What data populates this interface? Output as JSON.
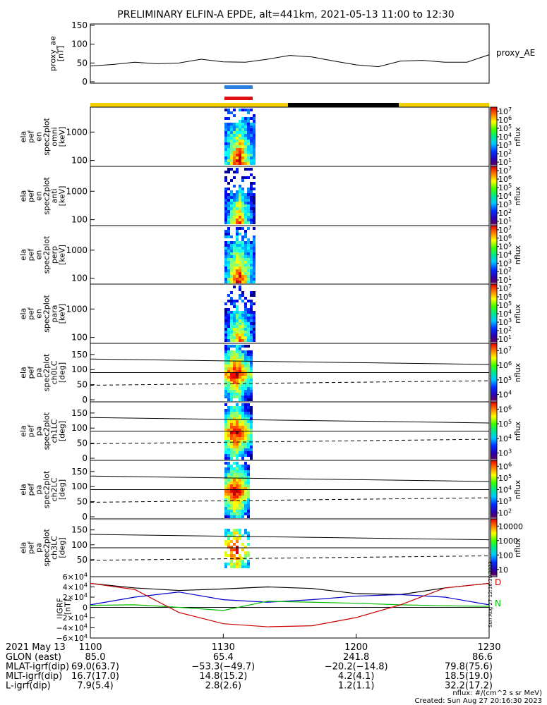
{
  "title": "PRELIMINARY ELFIN-A EPDE, alt=441km, 2021-05-13 11:00 to 12:30",
  "chart_data": {
    "type": "heatmap",
    "time_range": [
      "11:00",
      "12:30"
    ],
    "ae_panel": {
      "ylabel_lines": [
        "proxy_ae",
        "[nT]"
      ],
      "legend": "proxy_AE",
      "yticks": [
        "150",
        "100",
        "50",
        "0"
      ],
      "ylim": [
        0,
        150
      ],
      "series_x_minutes": [
        0,
        5,
        10,
        15,
        20,
        25,
        30,
        35,
        40,
        45,
        50,
        55,
        60,
        65,
        70,
        75,
        80,
        85,
        90
      ],
      "series_y": [
        42,
        46,
        52,
        48,
        50,
        60,
        53,
        52,
        60,
        70,
        66,
        55,
        45,
        40,
        55,
        57,
        52,
        52,
        72
      ]
    },
    "spectrogram_panels": [
      {
        "label_lines": [
          "ela",
          "pef",
          "en",
          "spec2plot",
          "omni",
          "[keV]"
        ],
        "yticks": [
          "1000",
          "100"
        ],
        "colorbar_ticks": [
          "10^7",
          "10^6",
          "10^5",
          "10^4",
          "10^3",
          "10^2",
          "10^1"
        ],
        "colorbar_label": "nflux"
      },
      {
        "label_lines": [
          "ela",
          "pef",
          "en",
          "spec2plot",
          "anti",
          "[keV]"
        ],
        "yticks": [
          "1000",
          "100"
        ],
        "colorbar_ticks": [
          "10^7",
          "10^6",
          "10^5",
          "10^4",
          "10^3",
          "10^2",
          "10^1"
        ],
        "colorbar_label": "nflux"
      },
      {
        "label_lines": [
          "ela",
          "pef",
          "en",
          "spec2plot",
          "perp",
          "[keV]"
        ],
        "yticks": [
          "1000",
          "100"
        ],
        "colorbar_ticks": [
          "10^7",
          "10^6",
          "10^5",
          "10^4",
          "10^3",
          "10^2",
          "10^1"
        ],
        "colorbar_label": "nflux"
      },
      {
        "label_lines": [
          "ela",
          "pef",
          "en",
          "spec2plot",
          "para",
          "[keV]"
        ],
        "yticks": [
          "1000",
          "100"
        ],
        "colorbar_ticks": [
          "10^7",
          "10^6",
          "10^5",
          "10^4",
          "10^3",
          "10^2",
          "10^1"
        ],
        "colorbar_label": "nflux"
      }
    ],
    "pitch_panels": [
      {
        "label_lines": [
          "ela",
          "pef",
          "pa",
          "spec2plot",
          "ch0LC",
          "[deg]"
        ],
        "yticks": [
          "150",
          "100",
          "50",
          "0"
        ],
        "colorbar_ticks": [
          "10^7",
          "10^6",
          "10^5",
          "10^4"
        ],
        "colorbar_label": "nflux"
      },
      {
        "label_lines": [
          "ela",
          "pef",
          "pa",
          "spec2plot",
          "ch1LC",
          "[deg]"
        ],
        "yticks": [
          "150",
          "100",
          "50",
          "0"
        ],
        "colorbar_ticks": [
          "10^6",
          "10^5",
          "10^4",
          "10^3"
        ],
        "colorbar_label": "nflux"
      },
      {
        "label_lines": [
          "ela",
          "pef",
          "pa",
          "spec2plot",
          "ch2LC",
          "[deg]"
        ],
        "yticks": [
          "150",
          "100",
          "50",
          "0"
        ],
        "colorbar_ticks": [
          "10^6",
          "10^5",
          "10^4",
          "10^3",
          "10^2"
        ],
        "colorbar_label": "nflux"
      },
      {
        "label_lines": [
          "ela",
          "pef",
          "pa",
          "spec2plot",
          "ch3LC",
          "[deg]"
        ],
        "yticks": [
          "150",
          "100",
          "50"
        ],
        "colorbar_ticks": [
          "10000",
          "1000",
          "100",
          "10"
        ],
        "colorbar_label": "nflux"
      }
    ],
    "igrf_panel": {
      "ylabel_lines": [
        "IGRF",
        "[nT]"
      ],
      "yticks": [
        "6×10^4",
        "4×10^4",
        "2×10^4",
        "0",
        "−2×10^4",
        "−4×10^4",
        "−6×10^4"
      ],
      "ylim": [
        -60000,
        60000
      ],
      "legend": [
        "D",
        "N"
      ],
      "series": [
        {
          "color": "#000000",
          "x": [
            0,
            10,
            20,
            30,
            40,
            50,
            60,
            70,
            80,
            90
          ],
          "y": [
            47000,
            38000,
            33000,
            36000,
            40000,
            37000,
            27000,
            25000,
            38000,
            47000
          ]
        },
        {
          "color": "#0000cc",
          "x": [
            0,
            10,
            20,
            30,
            40,
            50,
            60,
            70,
            80,
            90
          ],
          "y": [
            5000,
            20000,
            30000,
            15000,
            10000,
            15000,
            22000,
            25000,
            20000,
            5000
          ]
        },
        {
          "color": "#00bb00",
          "x": [
            0,
            10,
            20,
            30,
            40,
            50,
            60,
            70,
            80,
            90
          ],
          "y": [
            4000,
            5000,
            0,
            -6000,
            12000,
            10000,
            8000,
            5000,
            3000,
            2000
          ]
        },
        {
          "color": "#cc0000",
          "x": [
            0,
            10,
            20,
            30,
            40,
            50,
            60,
            70,
            80,
            90
          ],
          "y": [
            47000,
            35000,
            -10000,
            -32000,
            -38000,
            -36000,
            -20000,
            5000,
            38000,
            47000
          ]
        }
      ]
    },
    "ephemeris": {
      "date_label": "2021 May 13",
      "time_ticks": [
        "1100",
        "1130",
        "1200",
        "1230"
      ],
      "rows": [
        {
          "label": "GLON (east)",
          "values": [
            "85.0",
            "65.4",
            "241.8",
            "86.6"
          ]
        },
        {
          "label": "MLAT-igrf(dip)",
          "values": [
            "69.0(63.7)",
            "−53.3(−49.7)",
            "−20.2(−14.8)",
            "79.8(75.6)"
          ]
        },
        {
          "label": "MLT-igrf(dip)",
          "values": [
            "16.7(17.0)",
            "14.8(15.2)",
            "4.2(4.1)",
            "18.5(19.0)"
          ]
        },
        {
          "label": "L-igrf(dip)",
          "values": [
            "7.9(5.4)",
            "2.8(2.6)",
            "1.2(1.1)",
            "32.2(17.2)"
          ]
        }
      ]
    },
    "footer": {
      "units": "nflux: #/(cm^2 s sr MeV)",
      "created": "Created: Sun Aug 27 20:16:30 2023",
      "side_stamp": "Sun Aug 27 12:16:30 2023"
    }
  }
}
